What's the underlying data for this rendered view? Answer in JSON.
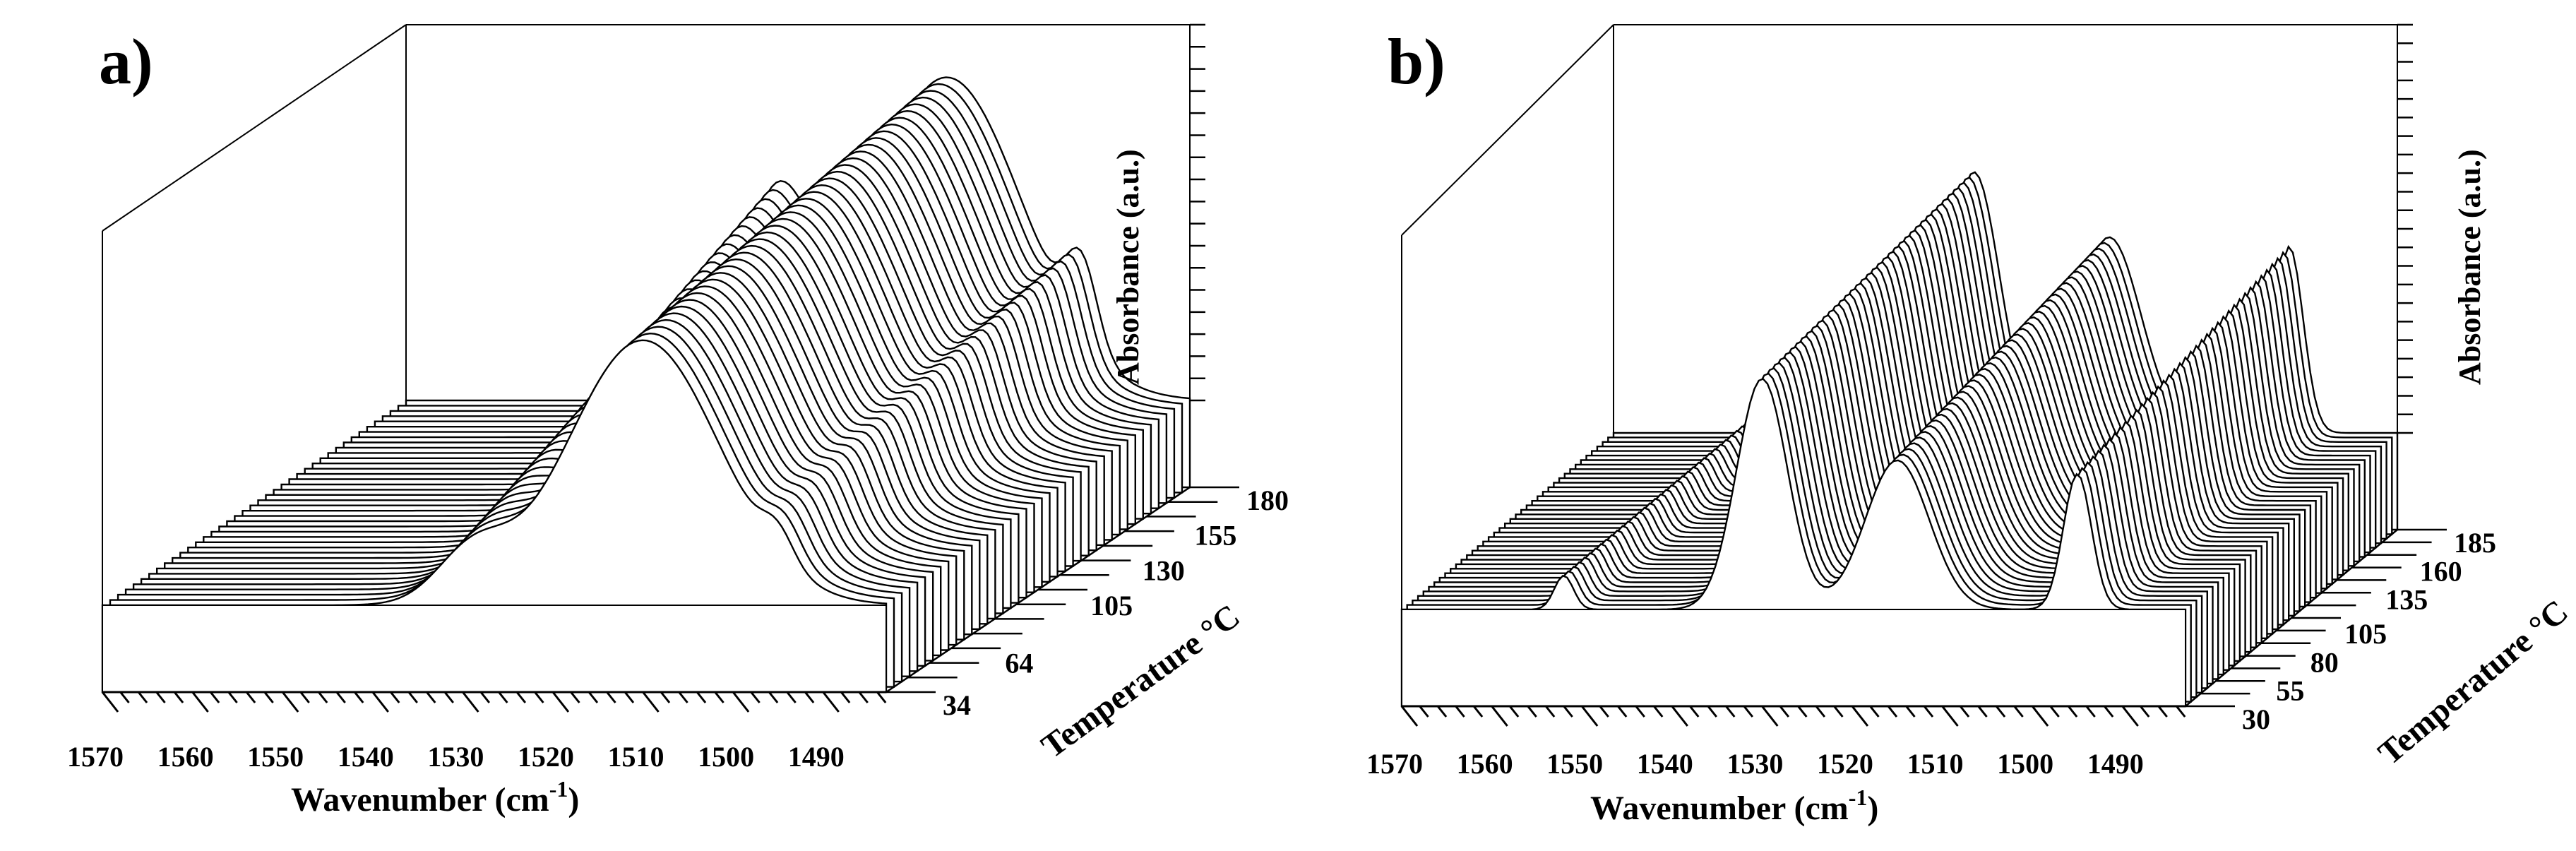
{
  "figure": {
    "colors": {
      "line": "#000000",
      "fill": "#ffffff",
      "background": "#ffffff"
    }
  },
  "chart_data": [
    {
      "type": "waterfall-3d-line",
      "panel_label": "a)",
      "xlabel": "Wavenumber (cm",
      "xlabel_sup": "-1",
      "xlabel_end": ")",
      "ylabel": "Absorbance (a.u.)",
      "zlabel": "Temperature",
      "zlabel_unit": "°C",
      "xlim": [
        1570,
        1483
      ],
      "x_ticks": [
        "1570",
        "1560",
        "1550",
        "1540",
        "1530",
        "1520",
        "1510",
        "1500",
        "1490"
      ],
      "temperature_ticks": [
        "34",
        "64",
        "105",
        "130",
        "155",
        "180"
      ],
      "temperature_range": [
        34,
        180
      ],
      "n_spectra": 40,
      "peaks": [
        {
          "center": 1529,
          "rel_height": 0.52,
          "width": 5.5,
          "note": "shoulder, grows with temperature"
        },
        {
          "center": 1510,
          "rel_height": 0.88,
          "width": 12,
          "note": "main band"
        },
        {
          "center": 1495,
          "rel_height": 0.22,
          "width": 2.5,
          "note": "sharp band at high temperature"
        }
      ]
    },
    {
      "type": "waterfall-3d-line",
      "panel_label": "b)",
      "xlabel": "Wavenumber (cm",
      "xlabel_sup": "-1",
      "xlabel_end": ")",
      "ylabel": "Absorbance (a.u.)",
      "zlabel": "Temperature",
      "zlabel_unit": "°C",
      "xlim": [
        1570,
        1483
      ],
      "x_ticks": [
        "1570",
        "1560",
        "1550",
        "1540",
        "1530",
        "1520",
        "1510",
        "1500",
        "1490"
      ],
      "temperature_ticks": [
        "30",
        "55",
        "80",
        "105",
        "135",
        "160",
        "185"
      ],
      "temperature_range": [
        30,
        185
      ],
      "n_spectra": 40,
      "peaks": [
        {
          "center": 1552,
          "rel_height": 0.1,
          "width": 1.5,
          "note": "small band"
        },
        {
          "center": 1530,
          "rel_height": 0.74,
          "width": 4,
          "note": "strong band"
        },
        {
          "center": 1515,
          "rel_height": 0.55,
          "width": 5,
          "note": "broad band"
        },
        {
          "center": 1495,
          "rel_height": 0.5,
          "width": 2.2,
          "note": "sharp band"
        }
      ]
    }
  ]
}
